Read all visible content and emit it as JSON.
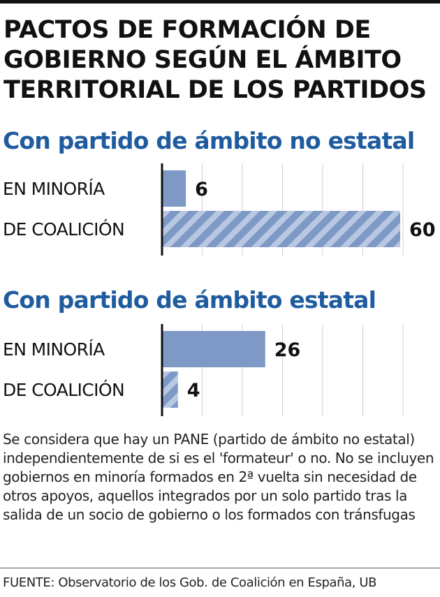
{
  "title_lines": [
    "PACTOS DE FORMACIÓN DE",
    "GOBIERNO SEGÚN EL ÁMBITO",
    "TERRITORIAL DE LOS PARTIDOS"
  ],
  "colors": {
    "accent": "#1f5c9f",
    "bar_solid": "#7e99c6",
    "bar_hatch_light": "#b8c8e3",
    "text": "#111111"
  },
  "chart_data": [
    {
      "type": "bar",
      "orientation": "horizontal",
      "title": "Con partido de ámbito no estatal",
      "categories": [
        "EN MINORÍA",
        "DE COALICIÓN"
      ],
      "values": [
        6,
        60
      ],
      "value_labels": [
        "6",
        "60"
      ],
      "styles": [
        "solid",
        "hatched"
      ],
      "xlim": [
        0,
        60
      ],
      "grid": true
    },
    {
      "type": "bar",
      "orientation": "horizontal",
      "title": "Con partido de ámbito estatal",
      "categories": [
        "EN MINORÍA",
        "DE COALICIÓN"
      ],
      "values": [
        26,
        4
      ],
      "value_labels": [
        "26",
        "4"
      ],
      "styles": [
        "solid",
        "hatched"
      ],
      "xlim": [
        0,
        60
      ],
      "grid": true
    }
  ],
  "note": "Se considera que hay un PANE (partido de ámbito no estatal) independientemente de si es el 'formateur' o no. No se incluyen gobiernos en minoría formados en 2ª vuelta sin necesidad de otros apoyos, aquellos integrados por un solo partido tras la salida de un socio de gobierno o los formados con tránsfugas",
  "source": "FUENTE: Observatorio de los Gob. de Coalición en España, UB"
}
